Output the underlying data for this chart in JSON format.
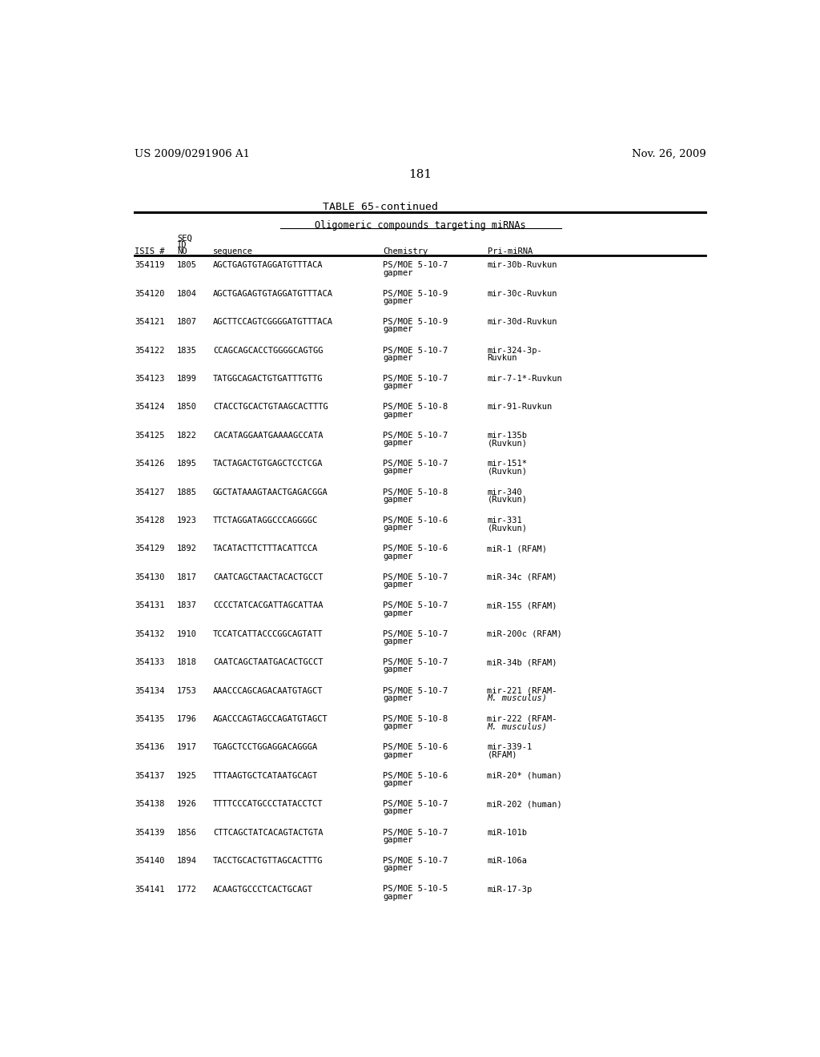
{
  "page_number": "181",
  "patent_left": "US 2009/0291906 A1",
  "patent_right": "Nov. 26, 2009",
  "table_title": "TABLE 65-continued",
  "table_subtitle": "Oligomeric compounds targeting miRNAs",
  "rows": [
    [
      "354119",
      "1805",
      "AGCTGAGTGTAGGATGTTTACA",
      "PS/MOE 5-10-7",
      "gapmer",
      "mir-30b-Ruvkun",
      ""
    ],
    [
      "354120",
      "1804",
      "AGCTGAGAGTGTAGGATGTTTACA",
      "PS/MOE 5-10-9",
      "gapmer",
      "mir-30c-Ruvkun",
      ""
    ],
    [
      "354121",
      "1807",
      "AGCTTCCAGTCGGGGATGTTTACA",
      "PS/MOE 5-10-9",
      "gapmer",
      "mir-30d-Ruvkun",
      ""
    ],
    [
      "354122",
      "1835",
      "CCAGCAGCACCTGGGGCAGTGG",
      "PS/MOE 5-10-7",
      "gapmer",
      "mir-324-3p-",
      "Ruvkun"
    ],
    [
      "354123",
      "1899",
      "TATGGCAGACTGTGATTTGTTG",
      "PS/MOE 5-10-7",
      "gapmer",
      "mir-7-1*-Ruvkun",
      ""
    ],
    [
      "354124",
      "1850",
      "CTACCTGCACTGTAAGCACTTTG",
      "PS/MOE 5-10-8",
      "gapmer",
      "mir-91-Ruvkun",
      ""
    ],
    [
      "354125",
      "1822",
      "CACATAGGAATGAAAAGCCATA",
      "PS/MOE 5-10-7",
      "gapmer",
      "mir-135b",
      "(Ruvkun)"
    ],
    [
      "354126",
      "1895",
      "TACTAGACTGTGAGCTCCTCGA",
      "PS/MOE 5-10-7",
      "gapmer",
      "mir-151*",
      "(Ruvkun)"
    ],
    [
      "354127",
      "1885",
      "GGCTATAAAGTAACTGAGACGGA",
      "PS/MOE 5-10-8",
      "gapmer",
      "mir-340",
      "(Ruvkun)"
    ],
    [
      "354128",
      "1923",
      "TTCTAGGATAGGCCCAGGGGC",
      "PS/MOE 5-10-6",
      "gapmer",
      "mir-331",
      "(Ruvkun)"
    ],
    [
      "354129",
      "1892",
      "TACATACTTCTTTACATTCCA",
      "PS/MOE 5-10-6",
      "gapmer",
      "miR-1 (RFAM)",
      ""
    ],
    [
      "354130",
      "1817",
      "CAATCAGCTAACTACACTGCCT",
      "PS/MOE 5-10-7",
      "gapmer",
      "miR-34c (RFAM)",
      ""
    ],
    [
      "354131",
      "1837",
      "CCCCTATCACGATTAGCATTAA",
      "PS/MOE 5-10-7",
      "gapmer",
      "miR-155 (RFAM)",
      ""
    ],
    [
      "354132",
      "1910",
      "TCCATCATTACCCGGCAGTATT",
      "PS/MOE 5-10-7",
      "gapmer",
      "miR-200c (RFAM)",
      ""
    ],
    [
      "354133",
      "1818",
      "CAATCAGCTAATGACACTGCCT",
      "PS/MOE 5-10-7",
      "gapmer",
      "miR-34b (RFAM)",
      ""
    ],
    [
      "354134",
      "1753",
      "AAACCCAGCAGACAATGTAGCT",
      "PS/MOE 5-10-7",
      "gapmer",
      "mir-221 (RFAM-",
      "M. musculus)"
    ],
    [
      "354135",
      "1796",
      "AGACCCAGTAGCCAGATGTAGCT",
      "PS/MOE 5-10-8",
      "gapmer",
      "mir-222 (RFAM-",
      "M. musculus)"
    ],
    [
      "354136",
      "1917",
      "TGAGCTCCTGGAGGACAGGGA",
      "PS/MOE 5-10-6",
      "gapmer",
      "mir-339-1",
      "(RFAM)"
    ],
    [
      "354137",
      "1925",
      "TTTAAGTGCTCATAATGCAGT",
      "PS/MOE 5-10-6",
      "gapmer",
      "miR-20* (human)",
      ""
    ],
    [
      "354138",
      "1926",
      "TTTTCCCATGCCCTATACCTCT",
      "PS/MOE 5-10-7",
      "gapmer",
      "miR-202 (human)",
      ""
    ],
    [
      "354139",
      "1856",
      "CTTCAGCTATCACAGTACTGTA",
      "PS/MOE 5-10-7",
      "gapmer",
      "miR-101b",
      ""
    ],
    [
      "354140",
      "1894",
      "TACCTGCACTGTTAGCACTTTG",
      "PS/MOE 5-10-7",
      "gapmer",
      "miR-106a",
      ""
    ],
    [
      "354141",
      "1772",
      "ACAAGTGCCCTCACTGCAGT",
      "PS/MOE 5-10-5",
      "gapmer",
      "miR-17-3p",
      ""
    ]
  ],
  "italic_rows": [
    15,
    16
  ],
  "bg_color": "#ffffff",
  "text_color": "#000000"
}
